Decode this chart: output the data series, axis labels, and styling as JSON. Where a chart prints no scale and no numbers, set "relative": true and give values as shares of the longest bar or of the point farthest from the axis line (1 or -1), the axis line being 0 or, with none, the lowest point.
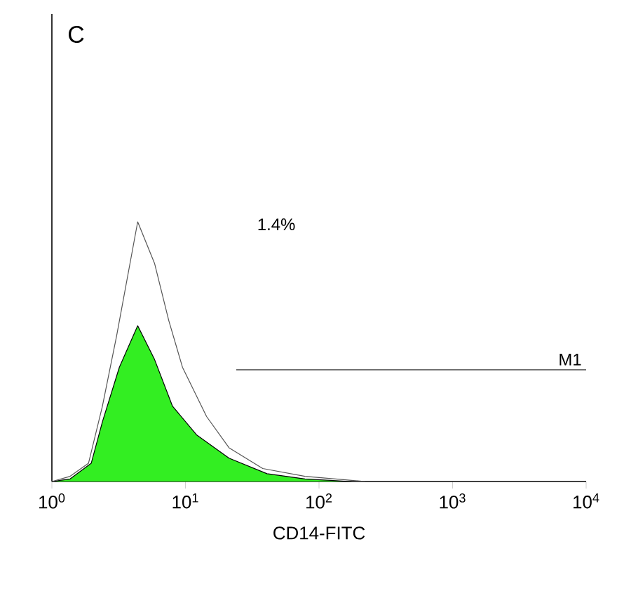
{
  "chart_data": {
    "type": "area",
    "title": "C",
    "xlabel": "CD14-FITC",
    "log": "x",
    "relative": true,
    "xlim": [
      1,
      10000
    ],
    "xticks": [
      {
        "value": 1,
        "label": "10$^{0}$"
      },
      {
        "value": 10,
        "label": "10$^{1}$"
      },
      {
        "value": 100,
        "label": "10$^{2}$"
      },
      {
        "value": 1000,
        "label": "10$^{3}$"
      },
      {
        "value": 10000,
        "label": "10$^{4}$"
      }
    ],
    "series": [
      {
        "type": "line",
        "color": "#555555",
        "x": [
          1,
          1.37,
          1.88,
          2.39,
          3.05,
          4.39,
          5.87,
          7.5,
          9.5,
          14.4,
          21.2,
          37.9,
          78.5,
          222
        ],
        "values": [
          0,
          0.02,
          0.07,
          0.29,
          0.56,
          1,
          0.84,
          0.62,
          0.44,
          0.25,
          0.13,
          0.05,
          0.02,
          0
        ]
      },
      {
        "color": "#33ee22",
        "x": [
          1,
          1.37,
          1.97,
          2.39,
          3.2,
          4.39,
          5.87,
          8.0,
          12.1,
          21.2,
          40.8,
          78.5,
          175
        ],
        "values": [
          0,
          0.01,
          0.07,
          0.23,
          0.44,
          0.6,
          0.47,
          0.29,
          0.18,
          0.09,
          0.03,
          0.01,
          0
        ]
      },
      {
        "type": "line",
        "name": "M1",
        "color": "#333333",
        "x": [
          24,
          10000
        ],
        "values": [
          0.43,
          0.43
        ]
      }
    ],
    "annotations": [
      "1.4%"
    ]
  }
}
